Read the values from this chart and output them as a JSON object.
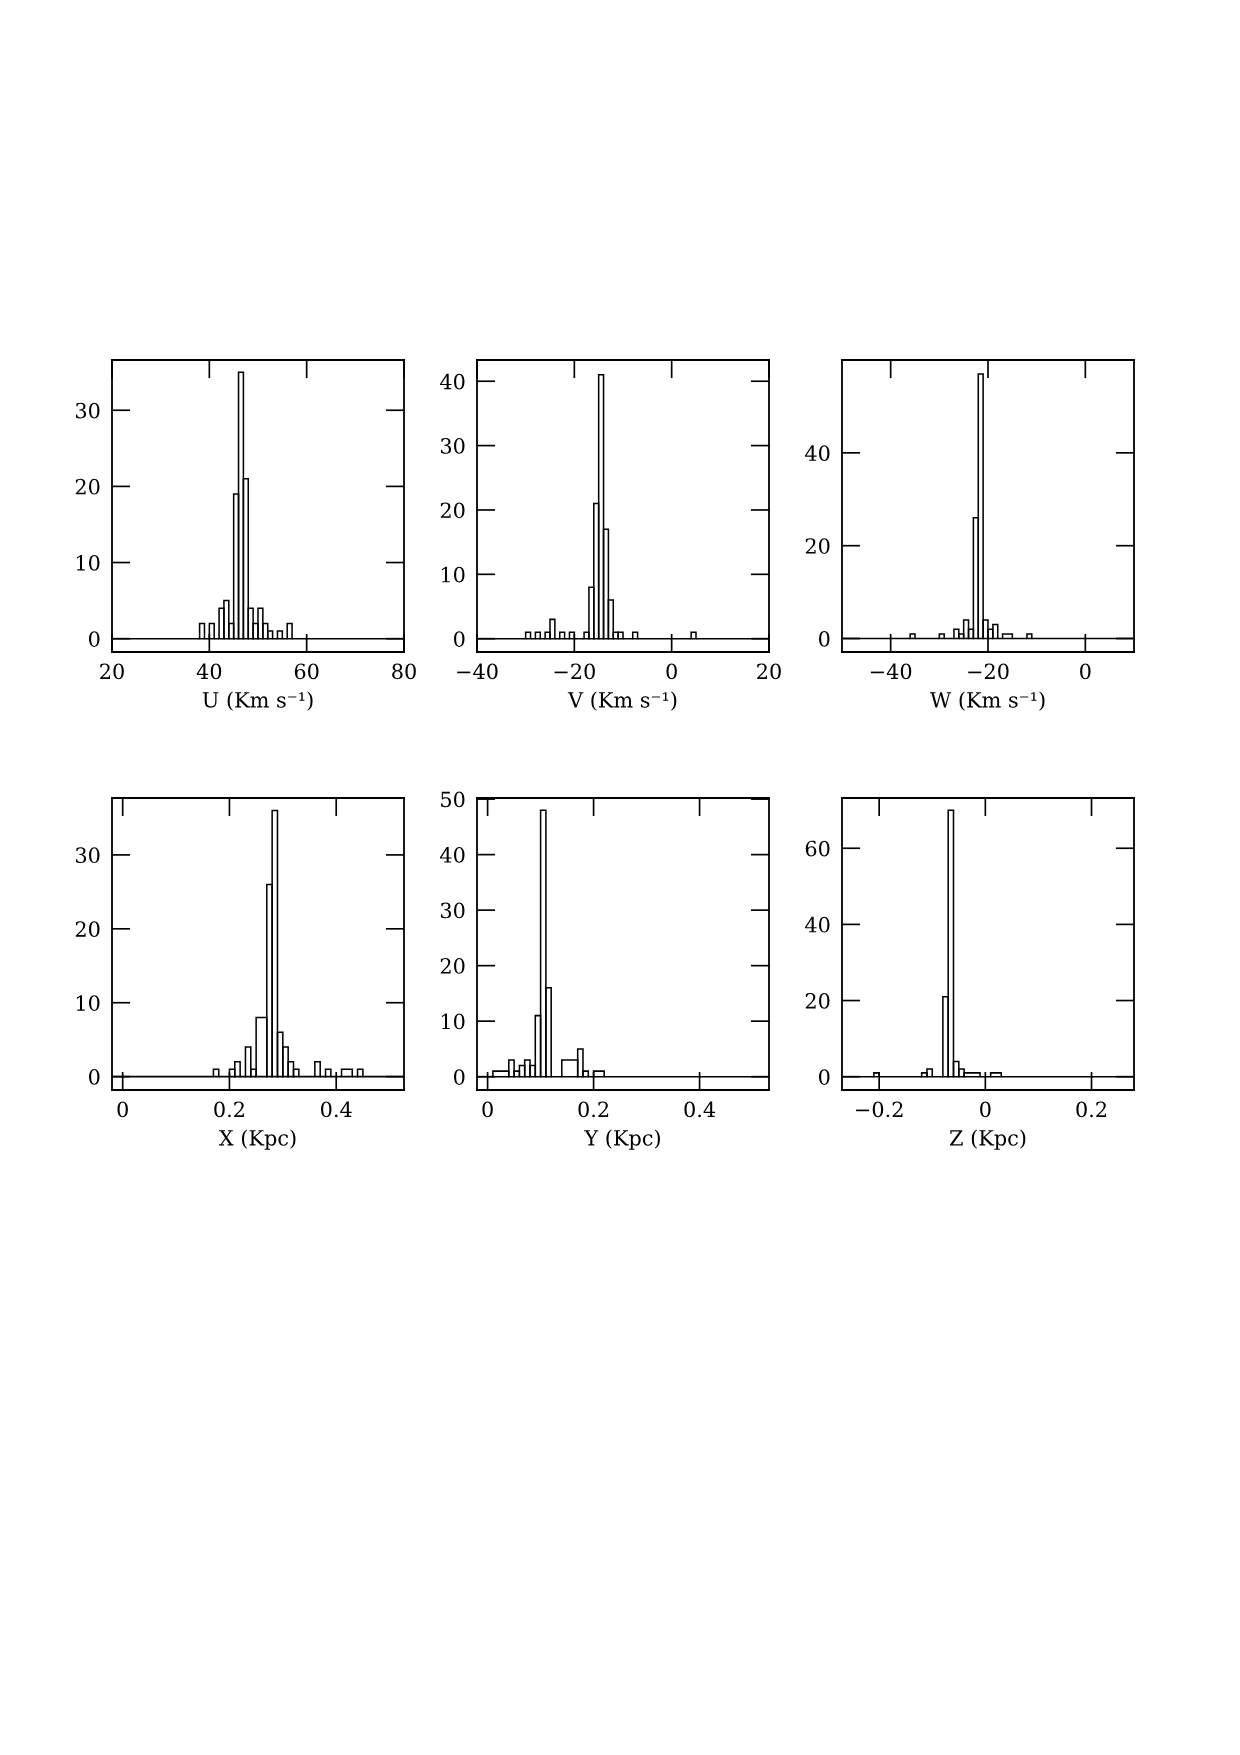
{
  "chart_data": [
    {
      "type": "histogram",
      "xlabel": "U (Km s⁻¹)",
      "color": "#000000",
      "bins": [
        20,
        38,
        39,
        40,
        41,
        42,
        43,
        44,
        45,
        46,
        47,
        48,
        49,
        50,
        51,
        52,
        53,
        54,
        55,
        56,
        57,
        80
      ],
      "values": [
        0,
        2,
        0,
        2,
        0,
        4,
        5,
        2,
        19,
        35,
        21,
        4,
        2,
        4,
        2,
        1,
        0,
        1,
        0,
        2,
        0
      ],
      "xlim": [
        20,
        80
      ],
      "ylim": [
        -1.75,
        36.6
      ],
      "xticks": [
        20,
        40,
        60,
        80
      ],
      "yticks": [
        0,
        10,
        20,
        30
      ]
    },
    {
      "type": "histogram",
      "xlabel": "V (Km s⁻¹)",
      "color": "#000000",
      "bins": [
        -40,
        -30,
        -29,
        -28,
        -27,
        -26,
        -25,
        -24,
        -23,
        -22,
        -21,
        -20,
        -19,
        -18,
        -17,
        -16,
        -15,
        -14,
        -13,
        -12,
        -11,
        -10,
        -9,
        -8,
        -7,
        4,
        5,
        20
      ],
      "values": [
        0,
        1,
        0,
        1,
        0,
        1,
        3,
        0,
        1,
        0,
        1,
        0,
        0,
        1,
        8,
        21,
        41,
        17,
        6,
        1,
        1,
        0,
        0,
        1,
        0,
        1,
        0
      ],
      "xlim": [
        -40,
        20
      ],
      "ylim": [
        -2.07,
        43.3
      ],
      "xticks": [
        {
          "value": -40,
          "label": "−40"
        },
        {
          "value": -20,
          "label": "−20"
        },
        0,
        20
      ],
      "yticks": [
        0,
        10,
        20,
        30,
        40
      ]
    },
    {
      "type": "histogram",
      "xlabel": "W (Km s⁻¹)",
      "color": "#000000",
      "bins": [
        -50,
        -36,
        -35,
        -30,
        -29,
        -27,
        -26,
        -25,
        -24,
        -23,
        -22,
        -21,
        -20,
        -19,
        -18,
        -17,
        -15,
        -12,
        -11,
        10
      ],
      "values": [
        0,
        1,
        0,
        1,
        0,
        2,
        1,
        4,
        2,
        26,
        57,
        4,
        2,
        3,
        0,
        1,
        0,
        1,
        0
      ],
      "xlim": [
        -50,
        10
      ],
      "ylim": [
        -2.9,
        60
      ],
      "xticks": [
        {
          "value": -40,
          "label": "−40"
        },
        {
          "value": -20,
          "label": "−20"
        },
        0
      ],
      "yticks": [
        0,
        20,
        40
      ]
    },
    {
      "type": "histogram",
      "xlabel": "X (Kpc)",
      "color": "#000000",
      "bins": [
        -0.02,
        0.17,
        0.18,
        0.2,
        0.21,
        0.22,
        0.23,
        0.24,
        0.25,
        0.27,
        0.28,
        0.29,
        0.3,
        0.31,
        0.32,
        0.33,
        0.36,
        0.37,
        0.38,
        0.39,
        0.41,
        0.43,
        0.44,
        0.45,
        0.527
      ],
      "values": [
        0,
        1,
        0,
        1,
        2,
        0,
        4,
        1,
        8,
        26,
        36,
        6,
        4,
        2,
        1,
        0,
        2,
        0,
        1,
        0,
        1,
        0,
        1,
        0
      ],
      "xlim": [
        -0.02,
        0.527
      ],
      "ylim": [
        -1.81,
        37.7
      ],
      "xticks": [
        0,
        0.2,
        0.4
      ],
      "yticks": [
        0,
        10,
        20,
        30
      ]
    },
    {
      "type": "histogram",
      "xlabel": "Y (Kpc)",
      "color": "#000000",
      "bins": [
        -0.02,
        0.01,
        0.04,
        0.05,
        0.06,
        0.07,
        0.08,
        0.09,
        0.1,
        0.11,
        0.12,
        0.14,
        0.17,
        0.18,
        0.19,
        0.2,
        0.22,
        0.531
      ],
      "values": [
        0,
        1,
        3,
        1,
        2,
        3,
        2,
        11,
        48,
        16,
        0,
        3,
        5,
        1,
        0,
        1,
        0
      ],
      "xlim": [
        -0.02,
        0.531
      ],
      "ylim": [
        -2.4,
        50.2
      ],
      "xticks": [
        0,
        0.2,
        0.4
      ],
      "yticks": [
        0,
        10,
        20,
        30,
        40,
        50
      ]
    },
    {
      "type": "histogram",
      "xlabel": "Z (Kpc)",
      "color": "#000000",
      "bins": [
        -0.27,
        -0.21,
        -0.2,
        -0.12,
        -0.11,
        -0.1,
        -0.08,
        -0.07,
        -0.06,
        -0.05,
        -0.04,
        -0.01,
        0.01,
        0.03,
        0.28
      ],
      "values": [
        0,
        1,
        0,
        1,
        2,
        0,
        21,
        70,
        4,
        2,
        1,
        0,
        1,
        0
      ],
      "xlim": [
        -0.27,
        0.28
      ],
      "ylim": [
        -3.5,
        73.2
      ],
      "xticks": [
        {
          "value": -0.2,
          "label": "−0.2"
        },
        0,
        0.2
      ],
      "yticks": [
        0,
        20,
        40,
        60
      ]
    }
  ]
}
